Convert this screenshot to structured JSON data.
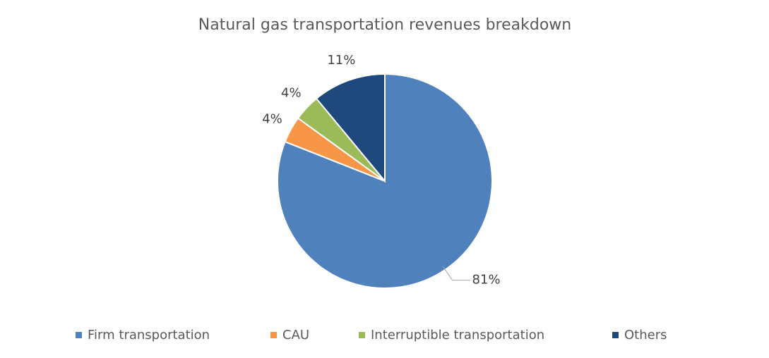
{
  "chart_data": {
    "type": "pie",
    "title": "Natural gas transportation revenues breakdown",
    "categories": [
      "Firm transportation",
      "CAU",
      "Interruptible transportation",
      "Others"
    ],
    "values": [
      81,
      4,
      4,
      11
    ],
    "value_labels": [
      "81%",
      "4%",
      "4%",
      "11%"
    ],
    "colors": [
      "#4f81bd",
      "#f79646",
      "#9bbb59",
      "#1f497d"
    ],
    "legend": "bottom"
  }
}
